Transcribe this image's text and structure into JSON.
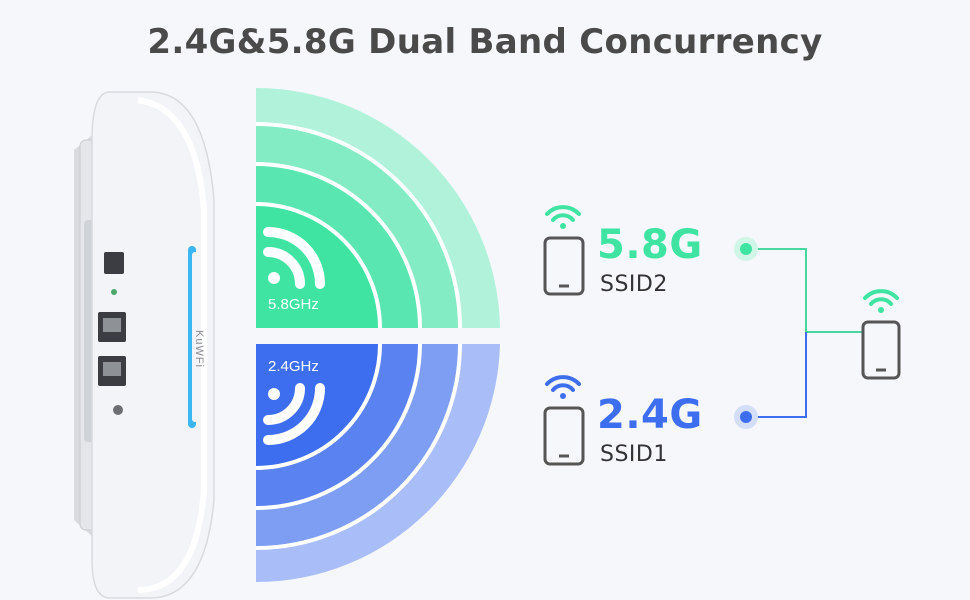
{
  "title": "2.4G&5.8G Dual Band Concurrency",
  "colors": {
    "green": "#3fe4a3",
    "blue": "#3e6ef0",
    "line_green": "#49d6a1",
    "line_blue": "#3e6ef0",
    "text_dark": "#4a4a4a"
  },
  "bands": {
    "upper": {
      "ghz_label": "5.8GHz",
      "band": "5.8G",
      "ssid": "SSID2",
      "icon": "wifi-signal-icon"
    },
    "lower": {
      "ghz_label": "2.4GHz",
      "band": "2.4G",
      "ssid": "SSID1",
      "icon": "wifi-signal-icon"
    }
  },
  "device": {
    "brand_text": "KuWFi",
    "icon": "access-point-device"
  },
  "client": {
    "icon": "smartphone-icon"
  }
}
